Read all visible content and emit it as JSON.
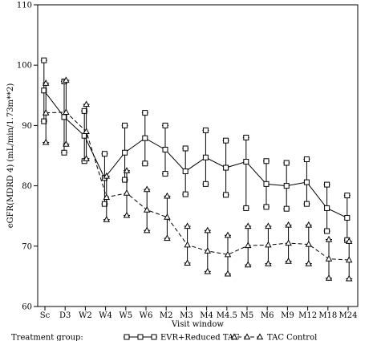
{
  "chart_data": {
    "type": "line",
    "ylabel": "eGFR(MDRD 4) (mL/min/1.73m**2)",
    "xlabel": "Visit window",
    "categories": [
      "Sc",
      "D3",
      "W2",
      "W4",
      "W5",
      "W6",
      "M2",
      "M3",
      "M4",
      "M4.5",
      "M5",
      "M6",
      "M9",
      "M12",
      "M18",
      "M24"
    ],
    "ylim": [
      60,
      110
    ],
    "yticks": [
      60,
      70,
      80,
      90,
      100,
      110
    ],
    "legend": {
      "title": "Treatment group:",
      "placement": "bottom"
    },
    "series": [
      {
        "name": "EVR+Reduced TAC",
        "marker": "square",
        "line_style": "solid",
        "values": [
          95.8,
          91.4,
          88.3,
          81.3,
          85.5,
          87.9,
          86.0,
          82.4,
          84.7,
          83.0,
          84.0,
          80.3,
          80.0,
          80.6,
          76.3,
          74.7
        ],
        "upper": [
          100.8,
          97.3,
          92.4,
          85.3,
          90.0,
          92.1,
          90.0,
          86.2,
          89.2,
          87.5,
          88.0,
          84.1,
          83.8,
          84.4,
          80.2,
          78.4
        ],
        "lower": [
          90.7,
          85.5,
          84.1,
          77.0,
          81.0,
          83.7,
          82.0,
          78.6,
          80.3,
          78.5,
          76.3,
          76.5,
          76.2,
          77.0,
          72.5,
          71.0
        ]
      },
      {
        "name": "TAC Control",
        "marker": "triangle",
        "line_style": "dashed",
        "values": [
          92.1,
          92.2,
          89.0,
          78.1,
          78.8,
          76.0,
          74.8,
          70.2,
          69.2,
          68.6,
          70.1,
          70.2,
          70.5,
          70.3,
          67.9,
          67.7
        ],
        "upper": [
          97.0,
          97.5,
          93.5,
          81.6,
          82.5,
          79.4,
          78.3,
          73.3,
          72.6,
          71.8,
          73.3,
          73.3,
          73.5,
          73.5,
          71.1,
          70.8
        ],
        "lower": [
          87.2,
          86.9,
          84.5,
          74.4,
          75.1,
          72.6,
          71.3,
          67.2,
          65.8,
          65.4,
          66.9,
          67.1,
          67.5,
          67.1,
          64.7,
          64.6
        ]
      }
    ]
  },
  "colors": {
    "line": "#000000",
    "background": "#ffffff"
  }
}
